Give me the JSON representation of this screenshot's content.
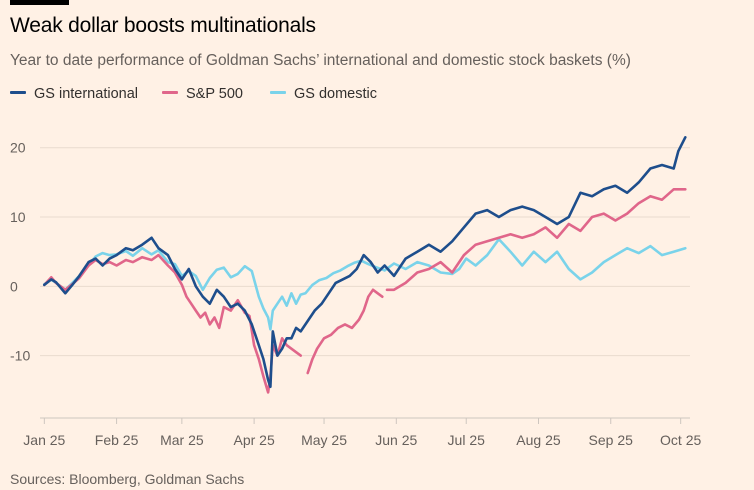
{
  "header": {
    "title": "Weak dollar boosts multinationals",
    "subtitle": "Year to date performance of Goldman Sachs’ international and domestic stock baskets (%)"
  },
  "legend": {
    "items": [
      {
        "label": "GS international",
        "color": "#1E4E8C"
      },
      {
        "label": "S&P 500",
        "color": "#E0668A"
      },
      {
        "label": "GS domestic",
        "color": "#7AD3EA"
      }
    ]
  },
  "footer": {
    "source": "Sources: Bloomberg, Goldman Sachs"
  },
  "chart_data": {
    "type": "line",
    "title": "Weak dollar boosts multinationals",
    "xlabel": "",
    "ylabel": "%",
    "x_unit": "days since 1 Jan 2025",
    "xlim": [
      -1,
      277
    ],
    "ylim": [
      -19,
      24
    ],
    "yticks": [
      -10,
      0,
      10,
      20
    ],
    "ytick_labels": [
      "-10",
      "0",
      "10",
      "20"
    ],
    "xticks": [
      0,
      31,
      59,
      90,
      120,
      151,
      181,
      212,
      243,
      273
    ],
    "xtick_labels": [
      "Jan 25",
      "Feb 25",
      "Mar 25",
      "Apr 25",
      "May 25",
      "Jun 25",
      "Jul 25",
      "Aug 25",
      "Sep 25",
      "Oct 25"
    ],
    "grid": "horizontal",
    "series": [
      {
        "name": "GS domestic",
        "color": "#7AD3EA",
        "x": [
          0,
          3,
          5,
          9,
          12,
          15,
          19,
          22,
          25,
          28,
          31,
          35,
          38,
          42,
          46,
          49,
          53,
          56,
          59,
          62,
          65,
          68,
          71,
          74,
          77,
          80,
          83,
          86,
          89,
          92,
          94,
          96,
          97,
          98,
          100,
          102,
          104,
          106,
          108,
          110,
          112,
          115,
          118,
          121,
          124,
          127,
          130,
          133,
          136,
          139,
          142,
          146,
          150,
          155,
          160,
          165,
          170,
          175,
          178,
          181,
          185,
          190,
          195,
          200,
          205,
          210,
          215,
          220,
          225,
          230,
          235,
          240,
          245,
          250,
          255,
          260,
          265,
          270,
          275
        ],
        "values": [
          0.3,
          1.0,
          0.5,
          -0.5,
          0.5,
          1.5,
          3.0,
          4.3,
          4.8,
          4.5,
          4.6,
          5.1,
          4.4,
          5.5,
          4.6,
          5.2,
          3.5,
          3.2,
          1.5,
          2.2,
          1.5,
          -0.5,
          1.2,
          2.4,
          2.7,
          1.3,
          1.8,
          2.9,
          2.2,
          -1.5,
          -3.2,
          -4.5,
          -6.2,
          -3.5,
          -2.5,
          -1.5,
          -2.8,
          -1.0,
          -2.5,
          -1.2,
          -1.0,
          0.2,
          0.9,
          1.2,
          1.9,
          2.3,
          2.9,
          3.4,
          3.7,
          3.2,
          2.8,
          2.3,
          3.3,
          2.5,
          3.5,
          3.0,
          2.0,
          1.8,
          2.5,
          4.0,
          3.0,
          4.5,
          6.8,
          5.0,
          3.0,
          5.0,
          3.5,
          5.0,
          2.5,
          1.0,
          2.0,
          3.5,
          4.5,
          5.5,
          4.8,
          5.8,
          4.5,
          5.0,
          5.5
        ]
      },
      {
        "name": "S&P 500",
        "color": "#E0668A",
        "segments": [
          {
            "x": [
              0,
              3,
              5,
              9,
              12,
              15,
              19,
              22,
              25,
              28,
              31,
              35,
              38,
              42,
              46,
              49,
              53,
              56,
              59,
              61,
              63,
              65,
              67,
              69,
              71,
              73,
              75,
              77,
              80,
              83,
              86,
              88,
              90,
              92,
              94,
              96,
              97,
              98,
              100,
              102,
              104,
              106,
              108,
              110
            ],
            "values": [
              0.2,
              1.3,
              0.5,
              -0.5,
              0.3,
              1.2,
              3.0,
              3.8,
              3.2,
              3.5,
              3.0,
              3.8,
              3.5,
              4.2,
              3.8,
              4.5,
              3.0,
              2.0,
              0.2,
              -1.5,
              -2.5,
              -3.5,
              -4.5,
              -3.8,
              -5.5,
              -4.5,
              -6.0,
              -3.0,
              -3.5,
              -2.0,
              -3.8,
              -4.3,
              -8.5,
              -10.5,
              -13.0,
              -15.3,
              -13.0,
              -8.5,
              -10.0,
              -7.5,
              -8.5,
              -9.0,
              -9.5,
              -10.0
            ]
          },
          {
            "x": [
              113,
              115,
              117,
              120,
              123,
              126,
              129,
              132,
              135,
              137,
              139,
              141,
              143,
              145
            ],
            "values": [
              -12.5,
              -10.5,
              -9.0,
              -7.5,
              -7.0,
              -6.0,
              -5.5,
              -6.0,
              -4.8,
              -3.5,
              -1.5,
              -0.5,
              -1.0,
              -1.5
            ]
          },
          {
            "x": [
              147,
              150,
              155,
              160,
              165,
              170,
              175,
              180,
              185,
              190,
              195,
              200,
              205,
              210,
              215,
              220,
              225,
              230,
              235,
              240,
              245,
              250,
              255,
              260,
              265,
              270,
              275
            ],
            "values": [
              -0.5,
              -0.5,
              0.5,
              2.0,
              2.5,
              3.5,
              2.0,
              4.5,
              6.0,
              6.5,
              7.0,
              7.5,
              7.0,
              7.5,
              8.5,
              7.0,
              9.0,
              8.0,
              10.0,
              10.5,
              9.5,
              10.5,
              12.0,
              13.0,
              12.5,
              14.0,
              14.0
            ]
          }
        ]
      },
      {
        "name": "GS international",
        "color": "#1E4E8C",
        "x": [
          0,
          3,
          5,
          9,
          12,
          15,
          19,
          22,
          25,
          28,
          31,
          35,
          38,
          42,
          46,
          49,
          53,
          56,
          59,
          62,
          65,
          68,
          71,
          74,
          77,
          80,
          83,
          86,
          89,
          92,
          94,
          96,
          97,
          98,
          100,
          102,
          104,
          106,
          108,
          110,
          113,
          116,
          119,
          122,
          125,
          128,
          131,
          134,
          137,
          140,
          143,
          146,
          150,
          155,
          160,
          165,
          170,
          175,
          180,
          185,
          190,
          195,
          200,
          205,
          210,
          215,
          220,
          225,
          230,
          235,
          240,
          245,
          250,
          255,
          260,
          265,
          270,
          272,
          275
        ],
        "values": [
          0.2,
          1.0,
          0.6,
          -1.0,
          0.2,
          1.5,
          3.5,
          4.0,
          3.0,
          4.0,
          4.5,
          5.5,
          5.2,
          6.0,
          7.0,
          5.5,
          4.5,
          2.5,
          1.0,
          2.5,
          0.0,
          -1.5,
          -2.5,
          -0.5,
          -1.5,
          -3.0,
          -2.5,
          -3.5,
          -5.5,
          -8.5,
          -10.5,
          -13.5,
          -14.5,
          -6.5,
          -10.0,
          -9.0,
          -7.5,
          -7.5,
          -6.0,
          -6.5,
          -5.0,
          -3.5,
          -2.5,
          -1.0,
          0.5,
          1.0,
          1.5,
          2.5,
          4.5,
          3.5,
          2.0,
          3.0,
          1.5,
          4.0,
          5.0,
          6.0,
          5.0,
          6.5,
          8.5,
          10.5,
          11.0,
          10.0,
          11.0,
          11.5,
          11.0,
          10.0,
          9.0,
          10.0,
          13.5,
          13.0,
          14.0,
          14.5,
          13.5,
          15.0,
          17.0,
          17.5,
          17.0,
          19.5,
          21.5
        ]
      }
    ]
  }
}
